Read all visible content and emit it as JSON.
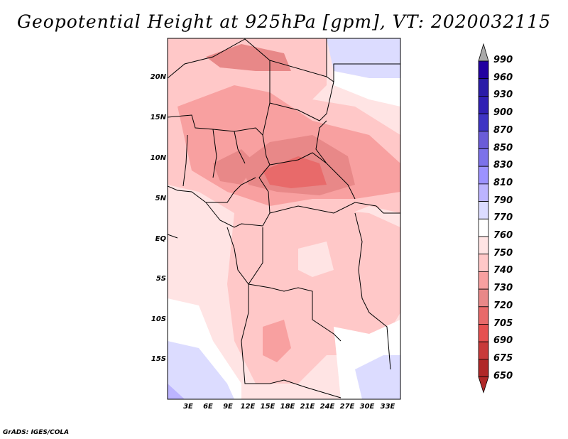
{
  "title": "Geopotential Height at 925hPa [gpm], VT: 2020032115",
  "lat_ticks": [
    "20N",
    "15N",
    "10N",
    "5N",
    "EQ",
    "5S",
    "10S",
    "15S"
  ],
  "lon_ticks": [
    "3E",
    "6E",
    "9E",
    "12E",
    "15E",
    "18E",
    "21E",
    "24E",
    "27E",
    "30E",
    "33E"
  ],
  "colorbar": {
    "labels": [
      "990",
      "960",
      "930",
      "900",
      "870",
      "850",
      "830",
      "810",
      "790",
      "770",
      "760",
      "750",
      "740",
      "730",
      "720",
      "705",
      "690",
      "675",
      "650"
    ],
    "colors": [
      "#2200a0",
      "#2a1ca8",
      "#3020b4",
      "#3e34c4",
      "#6a5cd8",
      "#7c72ea",
      "#9c92ff",
      "#bcb4ff",
      "#dcdcff",
      "#ffffff",
      "#ffe4e4",
      "#ffc8c8",
      "#f8a0a0",
      "#e88888",
      "#e86a6a",
      "#e65050",
      "#c83a3a",
      "#b02828"
    ],
    "over_color": "#aaaaaa",
    "under_color": "#b02828"
  },
  "credit": "GrADS: IGES/COLA"
}
